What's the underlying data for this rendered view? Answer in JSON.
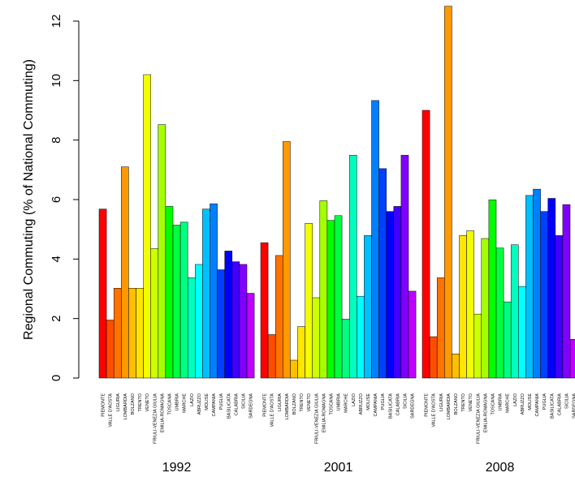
{
  "chart_data": {
    "type": "bar",
    "ylabel": "Regional Commuting (% of National Commuting)",
    "ylim": [
      0,
      12.5
    ],
    "yticks": [
      "0",
      "2",
      "4",
      "6",
      "8",
      "10",
      "12"
    ],
    "grid": false,
    "legend": "none",
    "categories": [
      "PIEMONTE",
      "VALLE D'AOSTA",
      "LIGURIA",
      "LOMBARDIA",
      "BOLZANO",
      "TRENTO",
      "VENETO",
      "FRIULI-VENEZIA GIULIA",
      "EMILIA-ROMAGNA",
      "TOSCANA",
      "UMBRIA",
      "MARCHE",
      "LAZIO",
      "ABRUZZO",
      "MOLISE",
      "CAMPANIA",
      "PUGLIA",
      "BASILICATA",
      "CALABRIA",
      "SICILIA",
      "SARDEGNA"
    ],
    "colors": [
      "#FF0000",
      "#FF4D00",
      "#FF7300",
      "#FF9900",
      "#FFBF00",
      "#FFE600",
      "#F2FF00",
      "#CCFF00",
      "#A6FF00",
      "#00FF00",
      "#00FF40",
      "#00FF80",
      "#00FFBF",
      "#00FFFF",
      "#00BFFF",
      "#0080FF",
      "#0040FF",
      "#0000FF",
      "#4000FF",
      "#8000FF",
      "#BF00FF"
    ],
    "series": [
      {
        "name": "1992",
        "values": [
          5.68,
          1.95,
          3.02,
          7.1,
          3.02,
          3.02,
          10.2,
          4.35,
          8.52,
          5.77,
          5.14,
          5.24,
          3.37,
          3.82,
          5.68,
          5.86,
          3.64,
          4.27,
          3.91,
          3.82,
          2.85
        ]
      },
      {
        "name": "2001",
        "values": [
          4.55,
          1.46,
          4.12,
          7.95,
          0.6,
          1.73,
          5.2,
          2.7,
          5.96,
          5.3,
          5.46,
          1.98,
          7.49,
          2.75,
          4.79,
          9.33,
          7.04,
          5.6,
          5.77,
          7.49,
          2.92
        ]
      },
      {
        "name": "2008",
        "values": [
          9.0,
          1.39,
          3.37,
          12.5,
          0.81,
          4.79,
          4.95,
          2.15,
          4.69,
          5.99,
          4.37,
          2.56,
          4.48,
          3.08,
          6.14,
          6.35,
          5.6,
          6.04,
          4.79,
          5.83,
          1.3
        ]
      }
    ]
  }
}
